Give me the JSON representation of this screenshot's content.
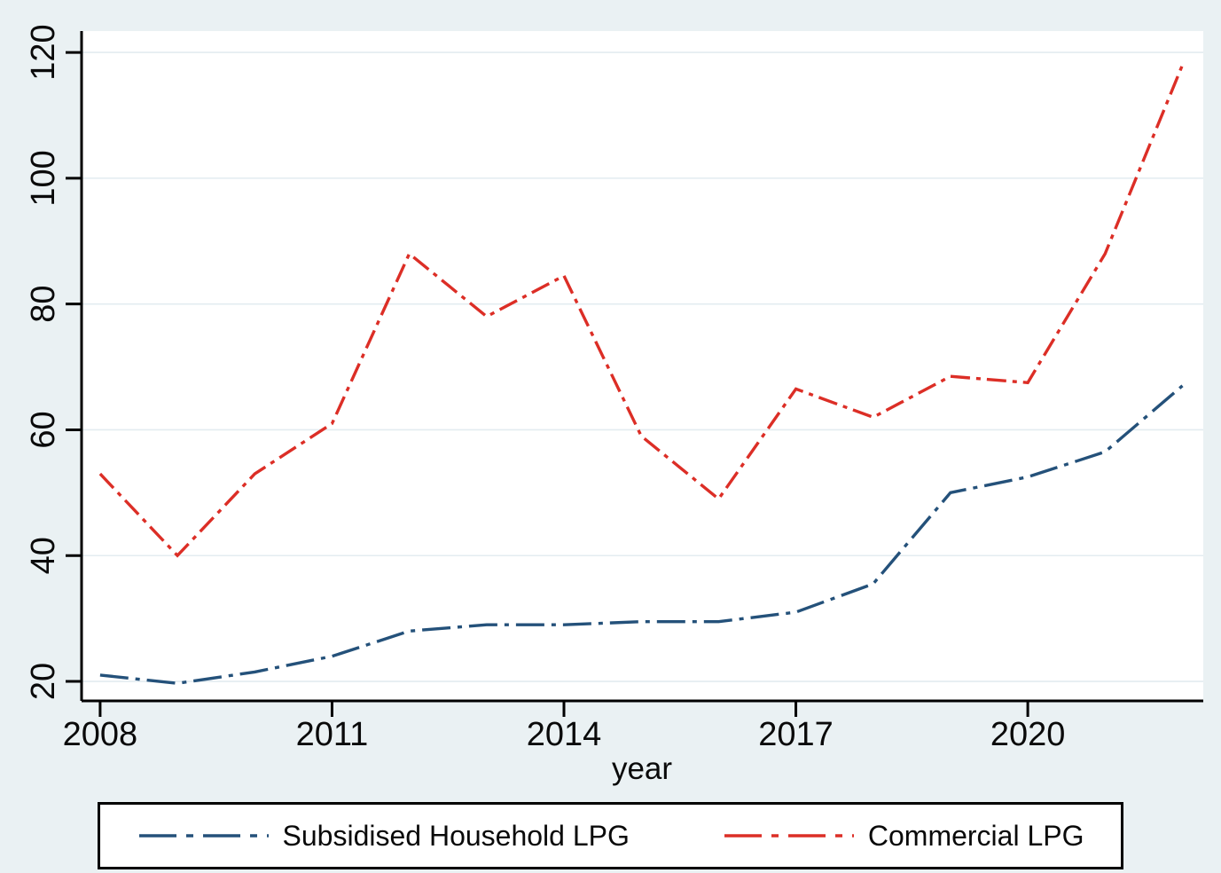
{
  "figure": {
    "background_color": "#eaf1f3",
    "plot_background_color": "#ffffff",
    "grid_color": "#e3ecf0",
    "axis_color": "#000000",
    "text_color": "#0a0a0a"
  },
  "chart_data": {
    "type": "line",
    "x": [
      2008,
      2009,
      2010,
      2011,
      2012,
      2013,
      2014,
      2015,
      2016,
      2017,
      2018,
      2019,
      2020,
      2021,
      2022
    ],
    "series": [
      {
        "name": "Subsidised Household LPG",
        "color": "#24517a",
        "dash": "32 8 5 8",
        "values": [
          21,
          19.7,
          21.5,
          24,
          28,
          29,
          29,
          29.5,
          29.5,
          31,
          35.5,
          50,
          52.5,
          56.5,
          67
        ]
      },
      {
        "name": "Commercial LPG",
        "color": "#dc2e26",
        "dash": "22 7 5 7",
        "values": [
          53,
          40,
          53,
          61,
          88,
          78,
          84.5,
          59,
          49,
          66.5,
          62,
          68.5,
          67.5,
          88,
          118
        ]
      }
    ],
    "title": "",
    "xlabel": "year",
    "ylabel": "",
    "xticks": [
      2008,
      2011,
      2014,
      2017,
      2020
    ],
    "yticks": [
      20,
      40,
      60,
      80,
      100,
      120
    ],
    "xlim": [
      2007.76,
      2022.27
    ],
    "ylim": [
      16.9,
      123.4
    ],
    "grid": "horizontal",
    "legend_position": "bottom"
  }
}
